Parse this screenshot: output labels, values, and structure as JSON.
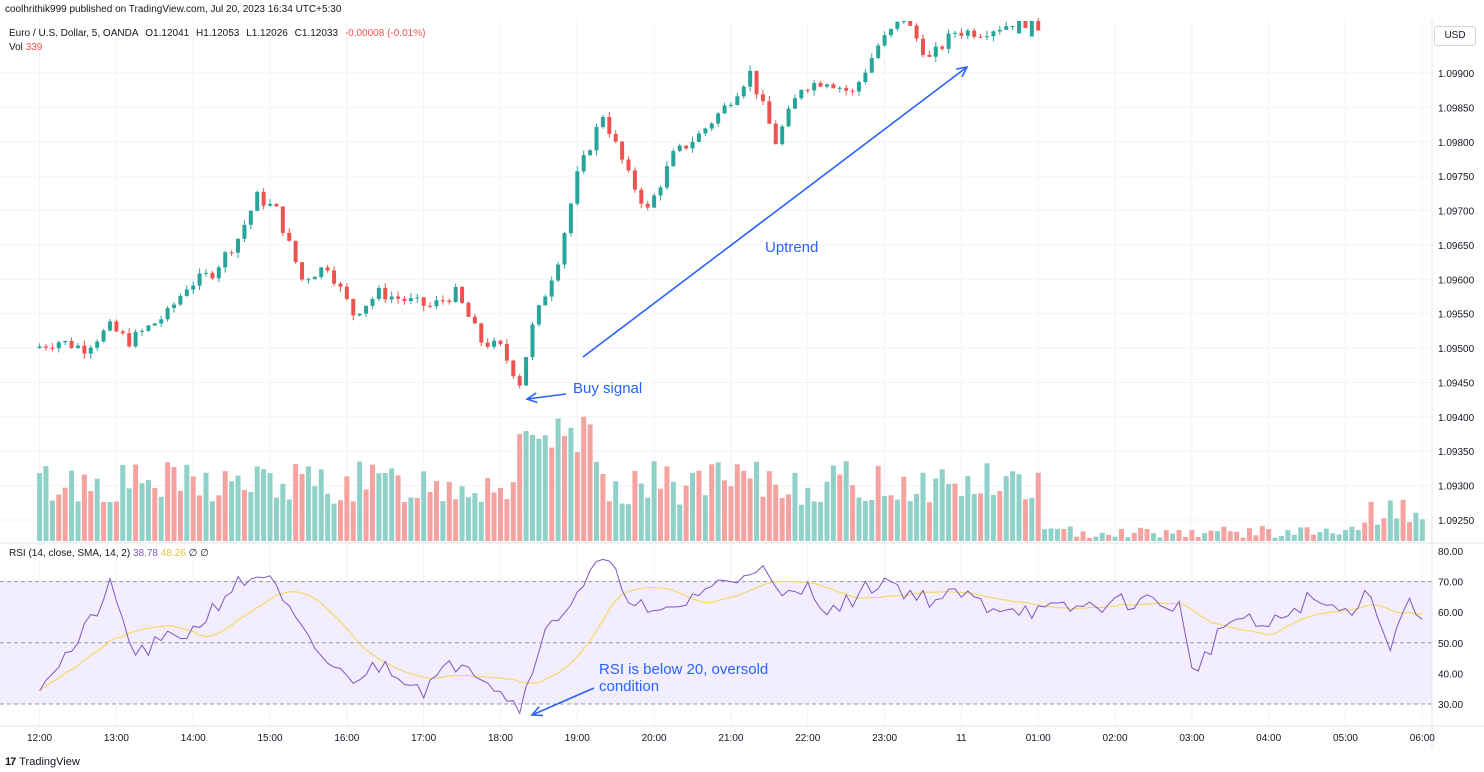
{
  "header": {
    "publisher": "coolhrithik999 published on TradingView.com, Jul 20, 2023 16:34 UTC+5:30",
    "symbol": "Euro / U.S. Dollar, 5, OANDA",
    "open": "O1.12041",
    "high": "H1.12053",
    "low": "L1.12026",
    "close": "C1.12033",
    "change": "-0.00008 (-0.01%)",
    "vol_label": "Vol",
    "vol_value": "339",
    "currency_button": "USD"
  },
  "rsi_legend": {
    "label": "RSI (14, close, SMA, 14, 2)",
    "rsi_value": "38.78",
    "ma_value": "48.26",
    "extra": "∅ ∅"
  },
  "footer": {
    "logo": "17",
    "brand": "TradingView"
  },
  "annotations": {
    "uptrend": "Uptrend",
    "buy_signal": "Buy signal",
    "rsi_line1": "RSI is below 20, oversold",
    "rsi_line2": "condition"
  },
  "colors": {
    "up": "#26a69a",
    "down": "#ef5350",
    "vol_up": "#8fd1c8",
    "vol_down": "#f4a3a0",
    "rsi": "#7e57c2",
    "rsi_ma": "#f5d86b",
    "annotation": "#2962ff"
  },
  "chart_data": {
    "type": "candlestick",
    "price_axis": {
      "ticks": [
        "1.09900",
        "1.09850",
        "1.09800",
        "1.09750",
        "1.09700",
        "1.09650",
        "1.09600",
        "1.09550",
        "1.09500",
        "1.09450",
        "1.09400",
        "1.09350",
        "1.09300",
        "1.09250"
      ]
    },
    "rsi_axis": {
      "ticks": [
        "80.00",
        "70.00",
        "60.00",
        "50.00",
        "40.00",
        "30.00"
      ],
      "levels": [
        70,
        50,
        30
      ]
    },
    "time_axis": [
      "12:00",
      "13:00",
      "14:00",
      "15:00",
      "16:00",
      "17:00",
      "18:00",
      "19:00",
      "20:00",
      "21:00",
      "22:00",
      "23:00",
      "11",
      "01:00",
      "02:00",
      "03:00",
      "04:00",
      "05:00",
      "06:00"
    ],
    "series": [
      {
        "name": "EUR/USD",
        "close_path": [
          [
            "12:00",
            1.095
          ],
          [
            "12:20",
            1.0951
          ],
          [
            "12:40",
            1.095
          ],
          [
            "13:00",
            1.0953
          ],
          [
            "13:15",
            1.0951
          ],
          [
            "13:45",
            1.0955
          ],
          [
            "14:00",
            1.0959
          ],
          [
            "14:20",
            1.0961
          ],
          [
            "14:40",
            1.0966
          ],
          [
            "14:55",
            1.0972
          ],
          [
            "15:10",
            1.097
          ],
          [
            "15:30",
            1.096
          ],
          [
            "15:50",
            1.0962
          ],
          [
            "16:10",
            1.0955
          ],
          [
            "16:30",
            1.0958
          ],
          [
            "16:50",
            1.0957
          ],
          [
            "17:10",
            1.0956
          ],
          [
            "17:30",
            1.0958
          ],
          [
            "17:50",
            1.0951
          ],
          [
            "18:05",
            1.095
          ],
          [
            "18:20",
            1.0945
          ],
          [
            "18:30",
            1.0953
          ],
          [
            "18:50",
            1.0963
          ],
          [
            "19:05",
            1.0975
          ],
          [
            "19:25",
            1.0984
          ],
          [
            "19:45",
            1.0975
          ],
          [
            "20:00",
            1.097
          ],
          [
            "20:20",
            1.0978
          ],
          [
            "20:40",
            1.0981
          ],
          [
            "21:00",
            1.0985
          ],
          [
            "21:20",
            1.099
          ],
          [
            "21:40",
            1.098
          ],
          [
            "22:00",
            1.0988
          ],
          [
            "22:20",
            1.0989
          ],
          [
            "22:40",
            1.0987
          ],
          [
            "23:00",
            1.0994
          ],
          [
            "23:20",
            1.0998
          ],
          [
            "23:40",
            1.0992
          ],
          [
            "00:00",
            1.0996
          ],
          [
            "00:20",
            1.0996
          ],
          [
            "00:40",
            1.0997
          ],
          [
            "01:00",
            1.0999
          ]
        ]
      },
      {
        "name": "RSI",
        "points": [
          [
            "12:00",
            37
          ],
          [
            "12:30",
            50
          ],
          [
            "12:55",
            68
          ],
          [
            "13:15",
            46
          ],
          [
            "13:45",
            52
          ],
          [
            "14:00",
            54
          ],
          [
            "14:30",
            68
          ],
          [
            "14:55",
            73
          ],
          [
            "15:30",
            50
          ],
          [
            "16:00",
            38
          ],
          [
            "16:30",
            43
          ],
          [
            "17:00",
            35
          ],
          [
            "17:30",
            45
          ],
          [
            "18:00",
            35
          ],
          [
            "18:15",
            28
          ],
          [
            "18:30",
            50
          ],
          [
            "19:00",
            67
          ],
          [
            "19:20",
            77
          ],
          [
            "19:40",
            66
          ],
          [
            "20:00",
            58
          ],
          [
            "20:20",
            62
          ],
          [
            "20:40",
            68
          ],
          [
            "21:00",
            70
          ],
          [
            "21:20",
            76
          ],
          [
            "21:40",
            64
          ],
          [
            "22:00",
            68
          ],
          [
            "22:20",
            60
          ],
          [
            "22:40",
            66
          ],
          [
            "23:00",
            71
          ],
          [
            "23:20",
            66
          ],
          [
            "23:40",
            64
          ],
          [
            "00:00",
            66
          ],
          [
            "00:20",
            62
          ],
          [
            "00:40",
            62
          ],
          [
            "01:00",
            60
          ],
          [
            "01:40",
            62
          ],
          [
            "02:20",
            64
          ],
          [
            "02:50",
            62
          ],
          [
            "03:00",
            40
          ],
          [
            "03:30",
            58
          ],
          [
            "04:00",
            55
          ],
          [
            "04:30",
            64
          ],
          [
            "05:00",
            60
          ],
          [
            "05:20",
            67
          ],
          [
            "05:35",
            48
          ],
          [
            "05:50",
            66
          ],
          [
            "06:00",
            55
          ]
        ]
      }
    ]
  }
}
